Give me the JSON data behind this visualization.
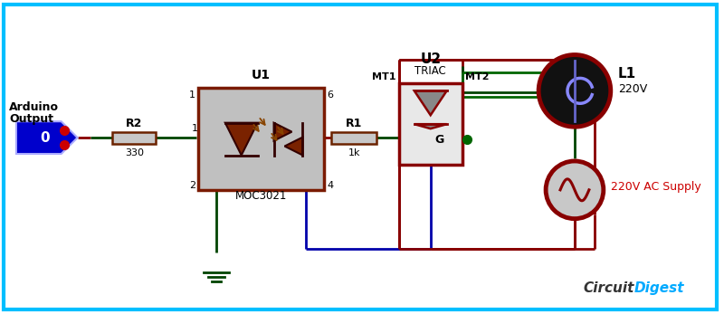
{
  "bg": "#ffffff",
  "border": "#00bfff",
  "red": "#880000",
  "green": "#004400",
  "blue": "#0000aa",
  "bright_green": "#006600",
  "resistor_fill": "#c8c8c8",
  "resistor_edge": "#6b2200",
  "opto_fill": "#c0c0c0",
  "opto_edge": "#7a1a00",
  "triac_fill": "#e8e8e8",
  "triac_edge": "#880000",
  "load_fill": "#111111",
  "load_edge": "#880000",
  "ac_fill": "#c8c8c8",
  "ac_edge": "#880000",
  "arduino_fill": "#0000cc",
  "label_r2": "R2",
  "val_r2": "330",
  "label_r1": "R1",
  "val_r1": "1k",
  "label_u1": "U1",
  "sub_u1": "MOC3021",
  "label_u2": "U2",
  "sub_u2": "TRIAC",
  "label_l1": "L1",
  "val_l1": "220V",
  "label_ac": "220V AC Supply",
  "label_mt1": "MT1",
  "label_mt2": "MT2",
  "label_g": "G",
  "pin1": "1",
  "pin2": "2",
  "pin4": "4",
  "pin6": "6",
  "cd_dark": "#333333",
  "cd_blue": "#00aaff",
  "tri_fill": "#888888",
  "led_fill": "#7a2200"
}
